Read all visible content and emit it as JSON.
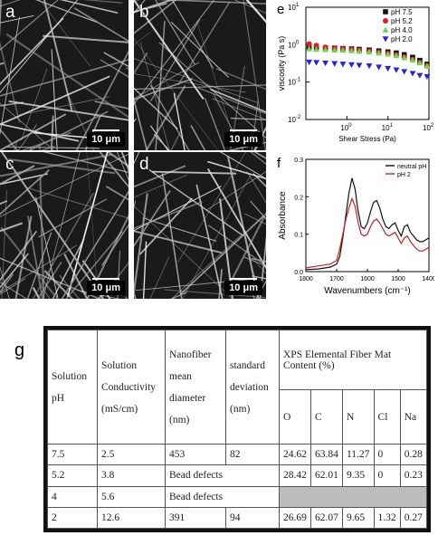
{
  "panels": {
    "a": {
      "label": "a",
      "scale": "10 μm"
    },
    "b": {
      "label": "b",
      "scale": "10 μm"
    },
    "c": {
      "label": "c",
      "scale": "10 μm"
    },
    "d": {
      "label": "d",
      "scale": "10 μm"
    },
    "e": {
      "label": "e"
    },
    "f": {
      "label": "f"
    },
    "g": {
      "label": "g"
    }
  },
  "chart_data": [
    {
      "type": "scatter",
      "panel": "e",
      "xlabel": "Shear Stress (Pa)",
      "ylabel": "viscosity (Pa s)",
      "x_scale": "log",
      "y_scale": "log",
      "xlim": [
        0.1,
        100
      ],
      "ylim": [
        0.01,
        10
      ],
      "x_ticks": [
        "10^0",
        "10^1",
        "10^2"
      ],
      "y_ticks": [
        "10^-2",
        "10^-1",
        "10^0",
        "10^1"
      ],
      "legend_position": "top-right",
      "series": [
        {
          "name": "pH 7.5",
          "marker": "square",
          "color": "#111111",
          "x": [
            0.12,
            0.18,
            0.3,
            0.5,
            0.8,
            1.3,
            2,
            3.5,
            6,
            10,
            16,
            25,
            40,
            60,
            90
          ],
          "y": [
            0.85,
            0.84,
            0.82,
            0.81,
            0.79,
            0.77,
            0.75,
            0.72,
            0.68,
            0.64,
            0.6,
            0.54,
            0.46,
            0.38,
            0.3
          ]
        },
        {
          "name": "pH 5.2",
          "marker": "circle",
          "color": "#e02020",
          "x": [
            0.12,
            0.18,
            0.3,
            0.5,
            0.8,
            1.3,
            2,
            3.5,
            6,
            10,
            16,
            25,
            40,
            60,
            90
          ],
          "y": [
            1.05,
            0.95,
            0.85,
            0.8,
            0.77,
            0.74,
            0.71,
            0.67,
            0.62,
            0.58,
            0.53,
            0.47,
            0.4,
            0.33,
            0.27
          ]
        },
        {
          "name": "pH 4.0",
          "marker": "triangle-up",
          "color": "#66d94a",
          "x": [
            0.12,
            0.18,
            0.3,
            0.5,
            0.8,
            1.3,
            2,
            3.5,
            6,
            10,
            16,
            25,
            40,
            60,
            90
          ],
          "y": [
            0.78,
            0.76,
            0.74,
            0.72,
            0.71,
            0.69,
            0.67,
            0.64,
            0.6,
            0.56,
            0.51,
            0.45,
            0.39,
            0.33,
            0.27
          ]
        },
        {
          "name": "pH 2.0",
          "marker": "triangle-down",
          "color": "#2424e0",
          "x": [
            0.12,
            0.18,
            0.3,
            0.5,
            0.8,
            1.3,
            2,
            3.5,
            6,
            10,
            16,
            25,
            40,
            60,
            90
          ],
          "y": [
            0.34,
            0.33,
            0.32,
            0.31,
            0.3,
            0.29,
            0.28,
            0.27,
            0.25,
            0.23,
            0.21,
            0.19,
            0.17,
            0.15,
            0.14
          ]
        }
      ]
    },
    {
      "type": "line",
      "panel": "f",
      "xlabel": "Wavenumbers (cm⁻¹)",
      "ylabel": "Absorbance",
      "xlim": [
        1800,
        1400
      ],
      "ylim": [
        0,
        0.3
      ],
      "x_ticks": [
        "1800",
        "1700",
        "1600",
        "1500",
        "1400"
      ],
      "y_ticks": [
        "0.0",
        "0.1",
        "0.2",
        "0.3"
      ],
      "legend_position": "top-right",
      "series": [
        {
          "name": "neutral pH",
          "color": "#111111",
          "x": [
            1800,
            1760,
            1720,
            1700,
            1690,
            1680,
            1670,
            1660,
            1650,
            1640,
            1630,
            1620,
            1610,
            1600,
            1590,
            1580,
            1570,
            1560,
            1550,
            1540,
            1530,
            1520,
            1510,
            1500,
            1490,
            1480,
            1470,
            1460,
            1450,
            1440,
            1430,
            1420,
            1410,
            1400
          ],
          "y": [
            0.005,
            0.007,
            0.012,
            0.02,
            0.04,
            0.09,
            0.15,
            0.21,
            0.25,
            0.22,
            0.16,
            0.12,
            0.115,
            0.13,
            0.16,
            0.185,
            0.19,
            0.17,
            0.14,
            0.12,
            0.115,
            0.125,
            0.13,
            0.11,
            0.095,
            0.12,
            0.125,
            0.105,
            0.095,
            0.085,
            0.08,
            0.08,
            0.085,
            0.09
          ]
        },
        {
          "name": "pH 2",
          "color": "#cc2020",
          "x": [
            1800,
            1760,
            1720,
            1700,
            1690,
            1680,
            1670,
            1660,
            1650,
            1640,
            1630,
            1620,
            1610,
            1600,
            1590,
            1580,
            1570,
            1560,
            1550,
            1540,
            1530,
            1520,
            1510,
            1500,
            1490,
            1480,
            1470,
            1460,
            1450,
            1440,
            1430,
            1420,
            1410,
            1400
          ],
          "y": [
            0.01,
            0.015,
            0.02,
            0.03,
            0.06,
            0.1,
            0.14,
            0.17,
            0.195,
            0.175,
            0.13,
            0.1,
            0.095,
            0.1,
            0.12,
            0.135,
            0.14,
            0.13,
            0.115,
            0.1,
            0.095,
            0.1,
            0.105,
            0.09,
            0.075,
            0.09,
            0.095,
            0.08,
            0.07,
            0.06,
            0.055,
            0.055,
            0.06,
            0.065
          ]
        }
      ]
    }
  ],
  "table": {
    "headers": {
      "ph": [
        "Solution",
        "pH"
      ],
      "conductivity": [
        "Solution",
        "Conductivity",
        "(mS/cm)"
      ],
      "diameter": [
        "Nanofiber",
        "mean",
        "diameter",
        "(nm)"
      ],
      "stdev": [
        "standard",
        "deviation",
        "(nm)"
      ],
      "xps": "XPS Elemental Fiber Mat Content (%)",
      "elements": [
        "O",
        "C",
        "N",
        "Cl",
        "Na"
      ]
    },
    "rows": [
      {
        "ph": "7.5",
        "cond": "2.5",
        "diam": "453",
        "std": "82",
        "O": "24.62",
        "C": "63.84",
        "N": "11.27",
        "Cl": "0",
        "Na": "0.28"
      },
      {
        "ph": "5.2",
        "cond": "3.8",
        "bead": "Bead defects",
        "O": "28.42",
        "C": "62.01",
        "N": "9.35",
        "Cl": "0",
        "Na": "0.23"
      },
      {
        "ph": "4",
        "cond": "5.6",
        "bead": "Bead defects"
      },
      {
        "ph": "2",
        "cond": "12.6",
        "diam": "391",
        "std": "94",
        "O": "26.69",
        "C": "62.07",
        "N": "9.65",
        "Cl": "1.32",
        "Na": "0.27"
      }
    ]
  }
}
